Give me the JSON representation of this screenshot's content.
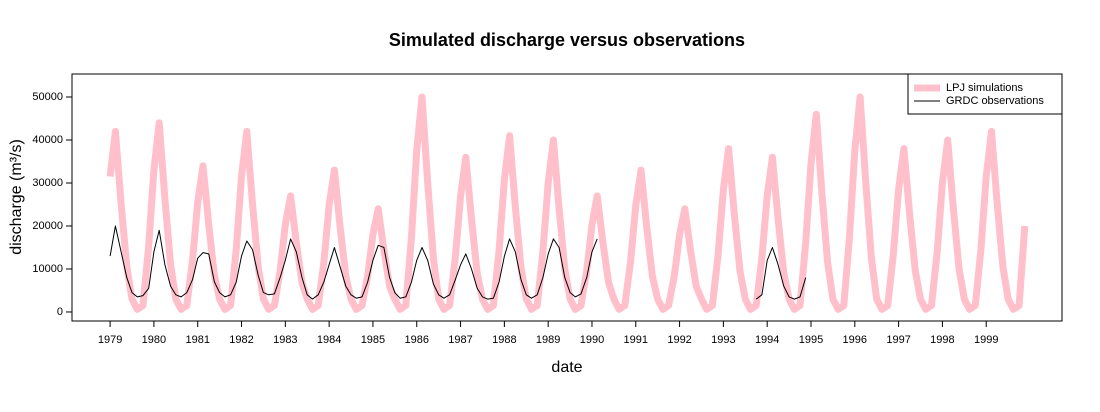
{
  "chart_data": {
    "type": "line",
    "title": "Simulated discharge versus observations",
    "xlabel": "date",
    "ylabel": "discharge (m³/s)",
    "xlim": [
      1978.13,
      2000.73
    ],
    "ylim": [
      -2100,
      55350
    ],
    "xticks": [
      1979,
      1980,
      1981,
      1982,
      1983,
      1984,
      1985,
      1986,
      1987,
      1988,
      1989,
      1990,
      1991,
      1992,
      1993,
      1994,
      1995,
      1996,
      1997,
      1998,
      1999
    ],
    "yticks": [
      0,
      10000,
      20000,
      30000,
      40000,
      50000
    ],
    "legend": "top-right",
    "x": [
      1979,
      1979.12,
      1979.25,
      1979.38,
      1979.5,
      1979.62,
      1979.75,
      1979.88,
      1980,
      1980.12,
      1980.25,
      1980.38,
      1980.5,
      1980.62,
      1980.75,
      1980.88,
      1981,
      1981.12,
      1981.25,
      1981.38,
      1981.5,
      1981.62,
      1981.75,
      1981.88,
      1982,
      1982.12,
      1982.25,
      1982.38,
      1982.5,
      1982.62,
      1982.75,
      1982.88,
      1983,
      1983.12,
      1983.25,
      1983.38,
      1983.5,
      1983.62,
      1983.75,
      1983.88,
      1984,
      1984.12,
      1984.25,
      1984.38,
      1984.5,
      1984.62,
      1984.75,
      1984.88,
      1985,
      1985.12,
      1985.25,
      1985.38,
      1985.5,
      1985.62,
      1985.75,
      1985.88,
      1986,
      1986.12,
      1986.25,
      1986.38,
      1986.5,
      1986.62,
      1986.75,
      1986.88,
      1987,
      1987.12,
      1987.25,
      1987.38,
      1987.5,
      1987.62,
      1987.75,
      1987.88,
      1988,
      1988.12,
      1988.25,
      1988.38,
      1988.5,
      1988.62,
      1988.75,
      1988.88,
      1989,
      1989.12,
      1989.25,
      1989.38,
      1989.5,
      1989.62,
      1989.75,
      1989.88,
      1990,
      1990.12,
      1990.25,
      1990.38,
      1990.5,
      1990.62,
      1990.75,
      1990.88,
      1991,
      1991.12,
      1991.25,
      1991.38,
      1991.5,
      1991.62,
      1991.75,
      1991.88,
      1992,
      1992.12,
      1992.25,
      1992.38,
      1992.5,
      1992.62,
      1992.75,
      1992.88,
      1993,
      1993.12,
      1993.25,
      1993.38,
      1993.5,
      1993.62,
      1993.75,
      1993.88,
      1994,
      1994.12,
      1994.25,
      1994.38,
      1994.5,
      1994.62,
      1994.75,
      1994.88,
      1995,
      1995.12,
      1995.25,
      1995.38,
      1995.5,
      1995.62,
      1995.75,
      1995.88,
      1996,
      1996.12,
      1996.25,
      1996.38,
      1996.5,
      1996.62,
      1996.75,
      1996.88,
      1997,
      1997.12,
      1997.25,
      1997.38,
      1997.5,
      1997.62,
      1997.75,
      1997.88,
      1998,
      1998.12,
      1998.25,
      1998.38,
      1998.5,
      1998.62,
      1998.75,
      1998.88,
      1999,
      1999.12,
      1999.25,
      1999.38,
      1999.5,
      1999.62,
      1999.75,
      1999.88
    ],
    "series": [
      {
        "name": "LPJ simulations",
        "color": "#ffc0cb",
        "width": 7,
        "values": [
          31500,
          42000,
          25200,
          10500,
          3000,
          600,
          1500,
          15400,
          33000,
          44000,
          26400,
          11000,
          3000,
          600,
          1500,
          11900,
          25500,
          34000,
          20400,
          8500,
          3000,
          600,
          1500,
          14700,
          31500,
          42000,
          25200,
          10500,
          3000,
          600,
          1500,
          9500,
          20300,
          27000,
          16200,
          6800,
          3000,
          600,
          1500,
          11600,
          24800,
          33000,
          19800,
          8300,
          3000,
          600,
          1500,
          8400,
          18000,
          24000,
          14400,
          6000,
          3000,
          600,
          1500,
          17500,
          37500,
          50000,
          30000,
          12500,
          3000,
          600,
          1500,
          12600,
          27000,
          36000,
          21600,
          9000,
          3000,
          600,
          1500,
          14400,
          30800,
          41000,
          24600,
          10300,
          3000,
          600,
          1500,
          14000,
          30000,
          40000,
          24000,
          10000,
          3000,
          600,
          1500,
          9500,
          20300,
          27000,
          16200,
          6800,
          3000,
          600,
          1500,
          11600,
          24800,
          33000,
          19800,
          8300,
          3000,
          600,
          1500,
          8400,
          18000,
          24000,
          14400,
          6000,
          3000,
          600,
          1500,
          13300,
          28500,
          38000,
          22800,
          9500,
          3000,
          600,
          1500,
          12600,
          27000,
          36000,
          21600,
          9000,
          3000,
          600,
          1500,
          16100,
          34500,
          46000,
          27600,
          11500,
          3000,
          600,
          1500,
          17500,
          37500,
          50000,
          30000,
          12500,
          3000,
          600,
          1500,
          13300,
          28500,
          38000,
          22800,
          9500,
          3000,
          600,
          1500,
          14000,
          30000,
          40000,
          24000,
          10000,
          3000,
          600,
          1500,
          14700,
          31500,
          42000,
          25200,
          10500,
          3000,
          600,
          1500,
          20000
        ]
      },
      {
        "name": "GRDC observations",
        "color": "#000000",
        "width": 1,
        "values": [
          13000,
          20000,
          14000,
          8000,
          4500,
          3500,
          3800,
          5500,
          14000,
          19000,
          11000,
          6000,
          4000,
          3500,
          4500,
          7500,
          12500,
          13800,
          13500,
          7000,
          4500,
          3500,
          4000,
          7000,
          13000,
          16500,
          14500,
          8500,
          4500,
          4000,
          4200,
          8000,
          12000,
          17000,
          14000,
          8000,
          4000,
          3000,
          4000,
          7000,
          11000,
          15000,
          10500,
          6000,
          4000,
          3200,
          3500,
          7000,
          12000,
          15500,
          15000,
          8000,
          4500,
          3200,
          3500,
          7000,
          12000,
          15000,
          12000,
          6500,
          4000,
          3200,
          4000,
          7500,
          11000,
          13500,
          10000,
          5500,
          3500,
          3000,
          3200,
          7000,
          13000,
          17000,
          14000,
          7500,
          4000,
          3200,
          4000,
          8000,
          13500,
          17000,
          15000,
          8000,
          4500,
          3500,
          4200,
          8000,
          14000,
          17000,
          null,
          null,
          null,
          null,
          null,
          null,
          null,
          null,
          null,
          null,
          null,
          null,
          null,
          null,
          null,
          null,
          null,
          null,
          null,
          null,
          null,
          null,
          null,
          null,
          null,
          null,
          null,
          null,
          3000,
          4000,
          12000,
          15000,
          11000,
          6000,
          3500,
          3000,
          3500,
          8000,
          null,
          null,
          null,
          null,
          null,
          null,
          null,
          null,
          null,
          null,
          null,
          null,
          null,
          null,
          null,
          null,
          null,
          null,
          null,
          null,
          null,
          null,
          null,
          null,
          null,
          null,
          null,
          null,
          null,
          null,
          null,
          null,
          null,
          null,
          null,
          null,
          null,
          null,
          null,
          null
        ]
      }
    ]
  }
}
